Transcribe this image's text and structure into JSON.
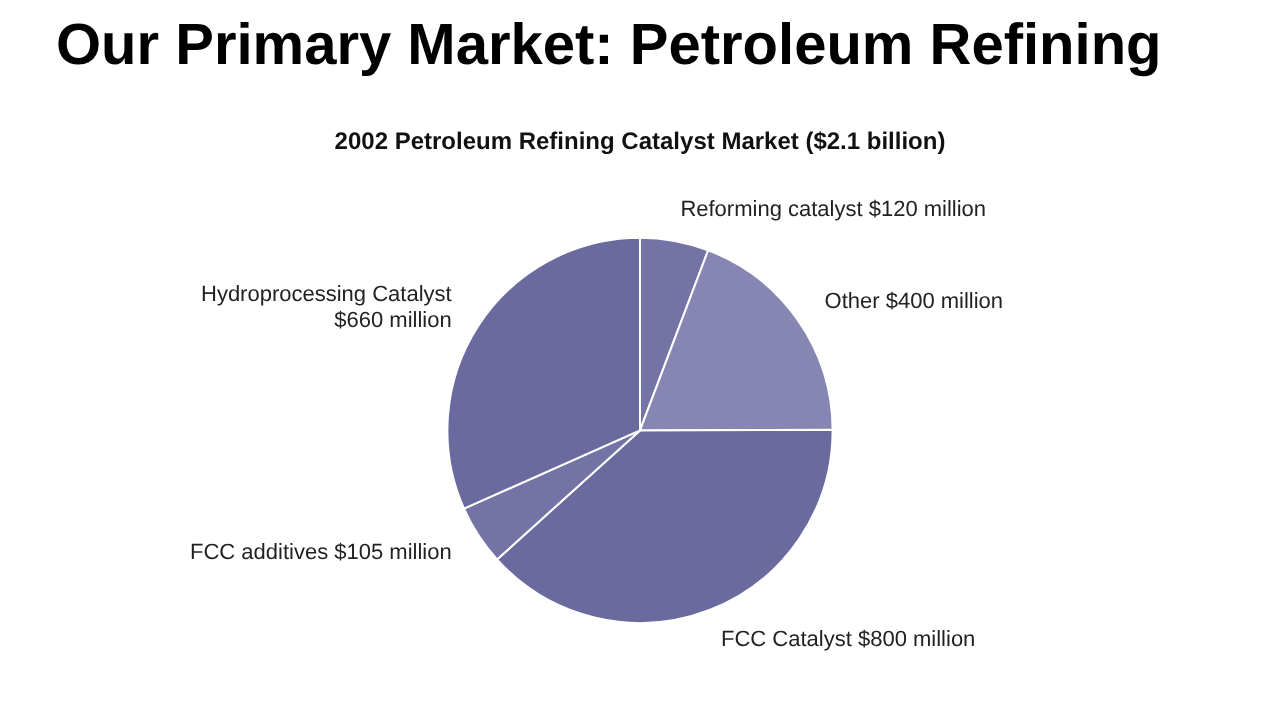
{
  "chart_data": {
    "type": "pie",
    "title": "Our Primary Market:  Petroleum Refining",
    "subtitle": "2002 Petroleum Refining Catalyst Market ($2.1 billion)",
    "categories": [
      "Reforming catalyst",
      "Other",
      "FCC Catalyst",
      "FCC additives",
      "Hydroprocessing Catalyst"
    ],
    "values": [
      120,
      400,
      800,
      105,
      660
    ],
    "value_labels": [
      "$120 million",
      "$400 million",
      "$800 million",
      "$105 million",
      "$660 million"
    ],
    "colors": [
      "#7473a6",
      "#8786b2",
      "#6b6a9f",
      "#7473a6",
      "#6b6a9f"
    ],
    "legend": false
  }
}
